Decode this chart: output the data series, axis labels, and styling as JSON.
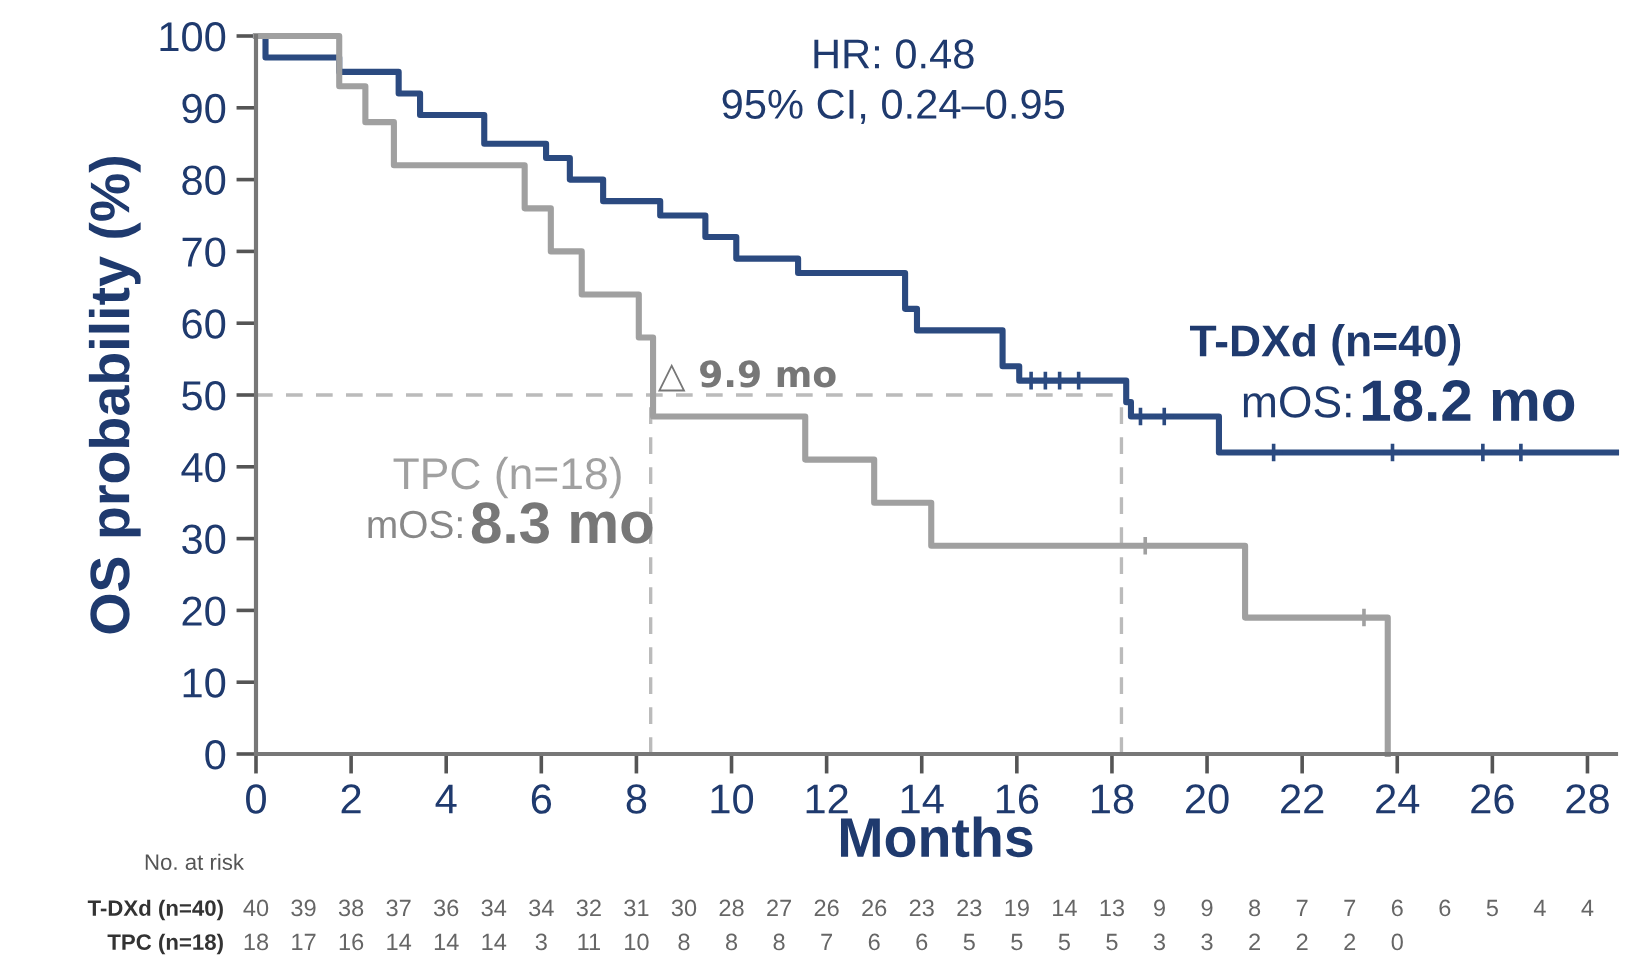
{
  "chart_data": {
    "type": "step",
    "xlabel": "Months",
    "ylabel": "OS probability (%)",
    "xlim": [
      0,
      28.6
    ],
    "xticks": [
      0,
      2,
      4,
      6,
      8,
      10,
      12,
      14,
      16,
      18,
      20,
      22,
      24,
      26,
      28
    ],
    "ylim": [
      0,
      100
    ],
    "yticks": [
      0,
      10,
      20,
      30,
      40,
      50,
      60,
      70,
      80,
      90,
      100
    ],
    "grid": false,
    "legend": false,
    "series": [
      {
        "name": "T-DXd (n=40)",
        "color": "#2b4a80",
        "x": [
          0,
          0.2,
          1.75,
          3.0,
          3.45,
          4.8,
          6.1,
          6.6,
          7.3,
          8.5,
          9.45,
          10.1,
          11.4,
          13.65,
          13.9,
          15.7,
          16.05,
          18.3,
          18.4,
          20.25,
          28.6
        ],
        "values": [
          100,
          97,
          95,
          92,
          89,
          85,
          83,
          80,
          77,
          75,
          72,
          69,
          67,
          62,
          59,
          54,
          52,
          49,
          47,
          42,
          42
        ]
      },
      {
        "name": "TPC (n=18)",
        "color": "#a0a0a0",
        "x": [
          0,
          1.75,
          2.3,
          2.9,
          5.65,
          6.2,
          6.85,
          8.05,
          8.35,
          11.55,
          13.0,
          14.2,
          20.8,
          23.8
        ],
        "values": [
          100,
          93,
          88,
          82,
          76,
          70,
          64,
          58,
          47,
          41,
          35,
          29,
          19,
          0
        ]
      },
      {
        "type": "scatter",
        "marker": "cross",
        "color": "#2b4a80",
        "x": [
          16.3,
          16.6,
          16.9,
          17.3,
          18.6,
          19.1,
          21.4,
          23.9,
          25.8,
          26.6
        ],
        "values": [
          52,
          52,
          52,
          52,
          47,
          47,
          42,
          42,
          42,
          42
        ]
      },
      {
        "type": "scatter",
        "marker": "cross",
        "color": "#a0a0a0",
        "x": [
          18.7,
          23.3
        ],
        "values": [
          29,
          19
        ]
      }
    ],
    "ref_lines": [
      {
        "axis": "y",
        "value": 50,
        "color": "#bbbbbb",
        "line_style": "dashed"
      },
      {
        "axis": "x",
        "value": 8.3,
        "color": "#bbbbbb",
        "line_style": "dashed"
      },
      {
        "axis": "x",
        "value": 18.2,
        "color": "#bbbbbb",
        "line_style": "dashed"
      }
    ],
    "annotations": [
      "HR: 0.48",
      "95% CI, 0.24–0.95",
      "△ 9.9 mo",
      "mOS:",
      "18.2 mo",
      "mOS:",
      "8.3 mo",
      "No. at risk",
      "T-DXd (n=40)",
      "TPC (n=18)",
      "40 39 38 37 36 34 34 32 31 30 28 27 26 26 23 23 19 14 13 9 9 8 7 7 6 6 5 4 4",
      "18 17 16 14 14 14 3 11 10 8 8 8 7 6 6 5 5 5 5 3 3 2 2 2 0"
    ]
  }
}
